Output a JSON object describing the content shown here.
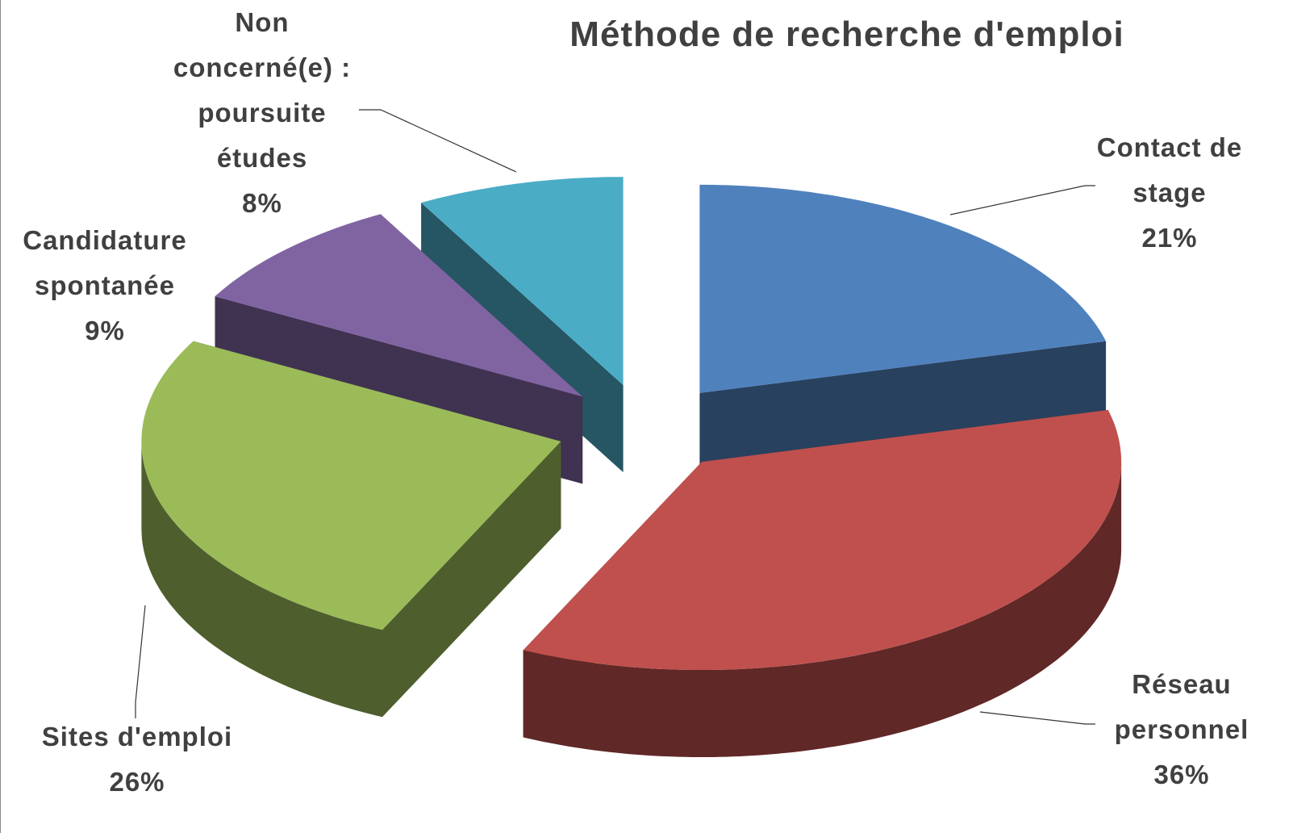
{
  "chart_data": {
    "type": "pie",
    "title": "Méthode de recherche d'emploi",
    "categories": [
      "Contact de stage",
      "Réseau personnel",
      "Sites d'emploi",
      "Candidature spontanée",
      "Non concerné(e) : poursuite études"
    ],
    "values": [
      21,
      36,
      26,
      9,
      8
    ],
    "value_labels": [
      "21%",
      "36%",
      "26%",
      "9%",
      "8%"
    ],
    "colors": [
      "#4f81bd",
      "#c0504d",
      "#9bbb59",
      "#8064a2",
      "#4bacc6"
    ]
  }
}
